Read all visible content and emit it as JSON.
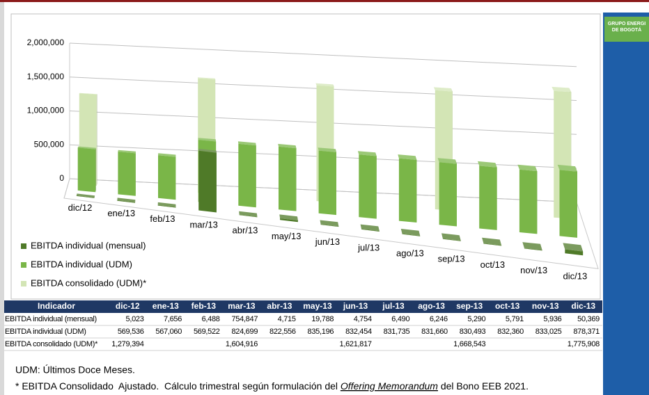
{
  "chart_data": {
    "type": "bar3d",
    "categories": [
      "dic/12",
      "ene/13",
      "feb/13",
      "mar/13",
      "abr/13",
      "may/13",
      "jun/13",
      "jul/13",
      "ago/13",
      "sep/13",
      "oct/13",
      "nov/13",
      "dic/13"
    ],
    "series": [
      {
        "name": "EBITDA individual (mensual)",
        "color": "#4f7a28",
        "values": [
          5023,
          7656,
          6488,
          754847,
          4715,
          19788,
          4754,
          6490,
          6246,
          5290,
          5791,
          5936,
          50369
        ],
        "value_labels": [
          "5,023",
          "7,656",
          "6,488",
          "754,847",
          "4,715",
          "19,788",
          "4,754",
          "6,490",
          "6,246",
          "5,290",
          "5,791",
          "5,936",
          "50,369"
        ]
      },
      {
        "name": "EBITDA individual (UDM)",
        "color": "#7ab648",
        "values": [
          569536,
          567060,
          569522,
          824699,
          822556,
          835196,
          832454,
          831735,
          831660,
          830493,
          832360,
          833025,
          878371
        ],
        "value_labels": [
          "569,536",
          "567,060",
          "569,522",
          "824,699",
          "822,556",
          "835,196",
          "832,454",
          "831,735",
          "831,660",
          "830,493",
          "832,360",
          "833,025",
          "878,371"
        ]
      },
      {
        "name": "EBITDA consolidado (UDM)*",
        "color": "#d3e5b5",
        "values": [
          1279394,
          null,
          null,
          1604916,
          null,
          null,
          1621817,
          null,
          null,
          1668543,
          null,
          null,
          1775908
        ],
        "value_labels": [
          "1,279,394",
          null,
          null,
          "1,604,916",
          null,
          null,
          "1,621,817",
          null,
          null,
          "1,668,543",
          null,
          null,
          "1,775,908"
        ]
      }
    ],
    "ylim": [
      0,
      2000000
    ],
    "yticks": [
      0,
      {
        "value": 500000,
        "label": "500,000"
      },
      {
        "value": 1000000,
        "label": "1,000,000"
      },
      {
        "value": 1500000,
        "label": "1,500,000"
      },
      {
        "value": 2000000,
        "label": "2,000,000"
      }
    ],
    "grid": true,
    "legend": "bottom-left"
  },
  "table": {
    "header": [
      "Indicador",
      "dic-12",
      "ene-13",
      "feb-13",
      "mar-13",
      "abr-13",
      "may-13",
      "jun-13",
      "jul-13",
      "ago-13",
      "sep-13",
      "oct-13",
      "nov-13",
      "dic-13"
    ]
  },
  "notes": {
    "udm": "UDM: Últimos Doce Meses.",
    "footnote": [
      "* EBITDA Consolidado  Ajustado.  Cálculo trimestral según formulación del ",
      "Offering Memorandum",
      " del Bono EEB 2021."
    ]
  },
  "logo": [
    "GRUPO ENERGI",
    "DE BOGOTÁ"
  ]
}
